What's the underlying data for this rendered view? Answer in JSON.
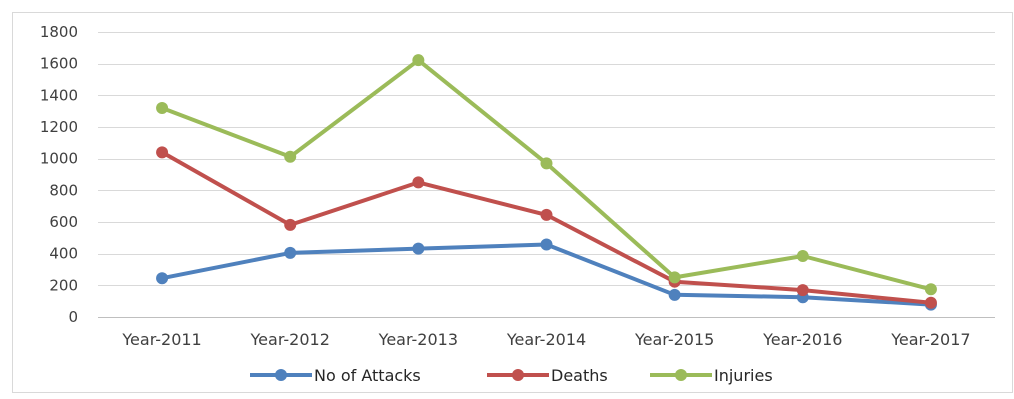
{
  "chart_data": {
    "type": "line",
    "title": "",
    "xlabel": "",
    "ylabel": "",
    "ylim": [
      0,
      1800
    ],
    "yticks": [
      0,
      200,
      400,
      600,
      800,
      1000,
      1200,
      1400,
      1600,
      1800
    ],
    "categories": [
      "Year-2011",
      "Year-2012",
      "Year-2013",
      "Year-2014",
      "Year-2015",
      "Year-2016",
      "Year-2017"
    ],
    "grid": "horizontal",
    "legend_position": "bottom",
    "series": [
      {
        "name": "No of Attacks",
        "color": "#4f81bd",
        "values": [
          245,
          405,
          432,
          458,
          140,
          125,
          78
        ]
      },
      {
        "name": "Deaths",
        "color": "#c0504d",
        "values": [
          1040,
          582,
          850,
          645,
          223,
          170,
          90
        ]
      },
      {
        "name": "Injuries",
        "color": "#9bbb59",
        "values": [
          1320,
          1012,
          1622,
          970,
          250,
          385,
          175
        ]
      }
    ]
  }
}
